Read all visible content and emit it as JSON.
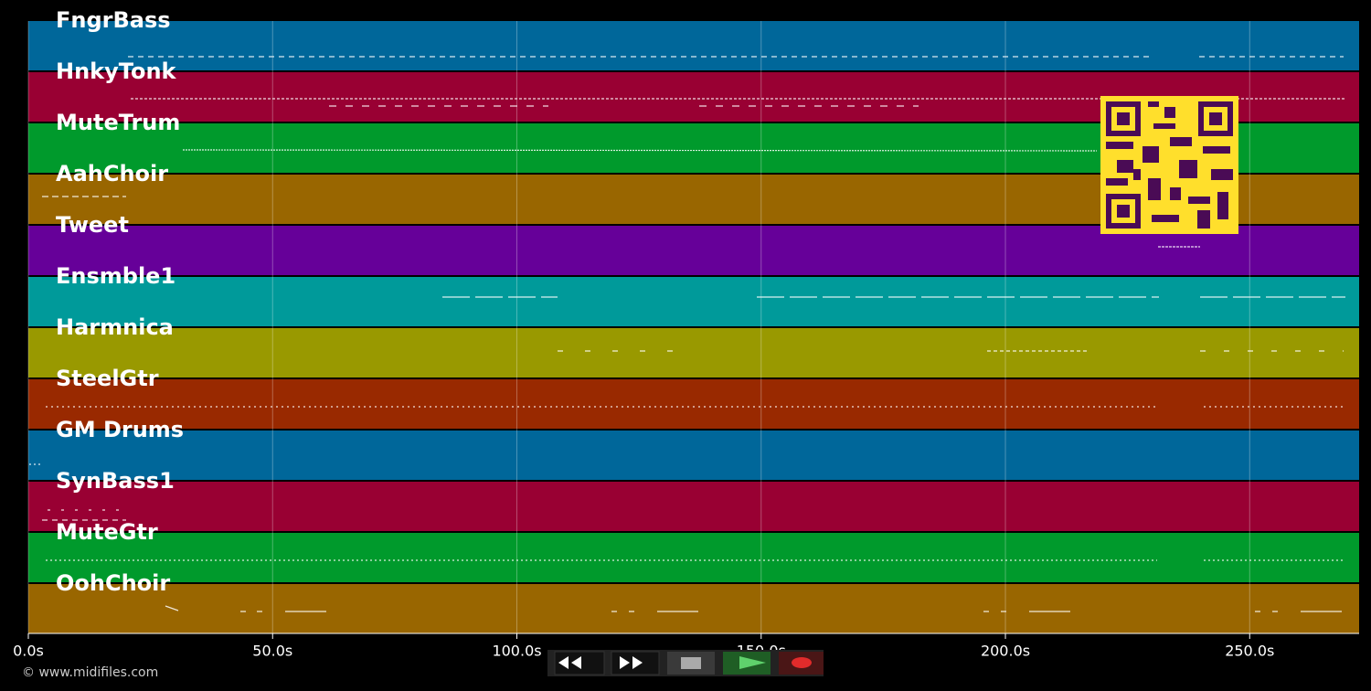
{
  "timeline": {
    "tracks": [
      {
        "name": "FngrBass",
        "color": "#00679a"
      },
      {
        "name": "HnkyTonk",
        "color": "#990033"
      },
      {
        "name": "MuteTrum",
        "color": "#009a2c"
      },
      {
        "name": "AahChoir",
        "color": "#996600"
      },
      {
        "name": "Tweet",
        "color": "#660099"
      },
      {
        "name": "Ensmble1",
        "color": "#009a9a"
      },
      {
        "name": "Harmnica",
        "color": "#999900"
      },
      {
        "name": "SteelGtr",
        "color": "#992900"
      },
      {
        "name": "GM Drums",
        "color": "#00679a"
      },
      {
        "name": "SynBass1",
        "color": "#990033"
      },
      {
        "name": "MuteGtr",
        "color": "#009a2c"
      },
      {
        "name": "OohChoir",
        "color": "#996600"
      }
    ],
    "xlim": [
      0,
      272.4
    ],
    "xticks": [
      {
        "value": 0,
        "label": "0.0s"
      },
      {
        "value": 50,
        "label": "50.0s"
      },
      {
        "value": 100,
        "label": "100.0s"
      },
      {
        "value": 150,
        "label": "150.0s"
      },
      {
        "value": 200,
        "label": "200.0s"
      },
      {
        "value": 250,
        "label": "250.0s"
      }
    ]
  },
  "footer": "© www.midifiles.com"
}
